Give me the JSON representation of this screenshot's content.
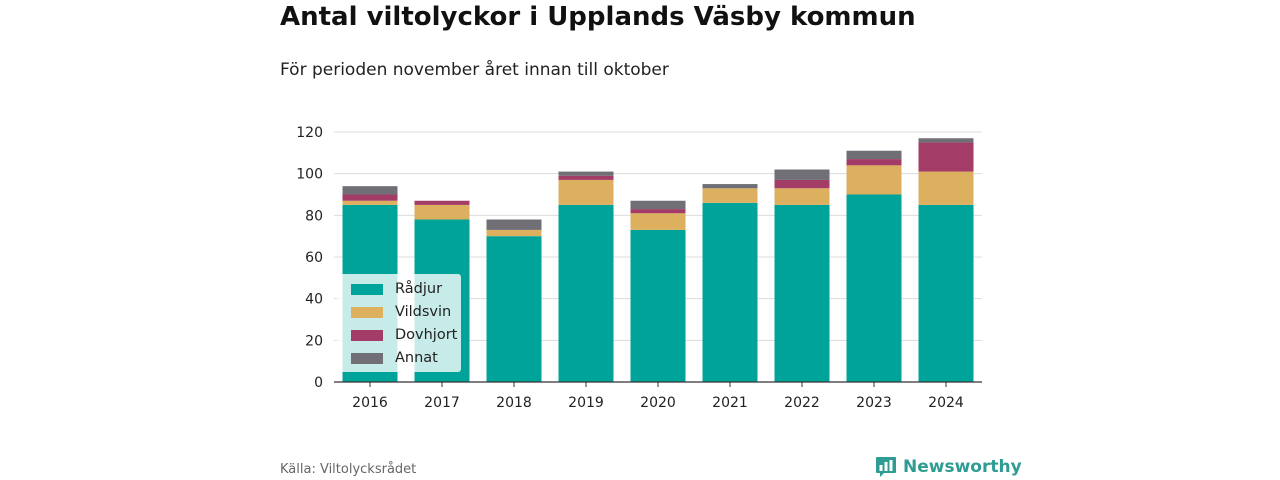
{
  "title": "Antal viltolyckor i Upplands Väsby kommun",
  "subtitle": "För perioden november året innan till oktober",
  "source": "Källa: Viltolycksrådet",
  "brand": {
    "name": "Newsworthy",
    "icon": "newsworthy-logo-icon",
    "color": "#2e9c92"
  },
  "chart_data": {
    "type": "bar",
    "stacked": true,
    "title": "Antal viltolyckor i Upplands Väsby kommun",
    "subtitle": "För perioden november året innan till oktober",
    "categories": [
      "2016",
      "2017",
      "2018",
      "2019",
      "2020",
      "2021",
      "2022",
      "2023",
      "2024"
    ],
    "series": [
      {
        "name": "Rådjur",
        "color": "#00a39a",
        "values": [
          85,
          78,
          70,
          85,
          73,
          86,
          85,
          90,
          85
        ]
      },
      {
        "name": "Vildsvin",
        "color": "#dcb05e",
        "values": [
          2,
          7,
          3,
          12,
          8,
          7,
          8,
          14,
          16
        ]
      },
      {
        "name": "Dovhjort",
        "color": "#a33c66",
        "values": [
          3,
          2,
          0,
          2,
          2,
          0,
          4,
          3,
          14
        ]
      },
      {
        "name": "Annat",
        "color": "#6f6f75",
        "values": [
          4,
          0,
          5,
          2,
          4,
          2,
          5,
          4,
          2
        ]
      }
    ],
    "ylim": [
      0,
      120
    ],
    "yticks": [
      0,
      20,
      40,
      60,
      80,
      100,
      120
    ],
    "xlabel": "",
    "ylabel": "",
    "grid": true,
    "legend": "bottom-left"
  }
}
